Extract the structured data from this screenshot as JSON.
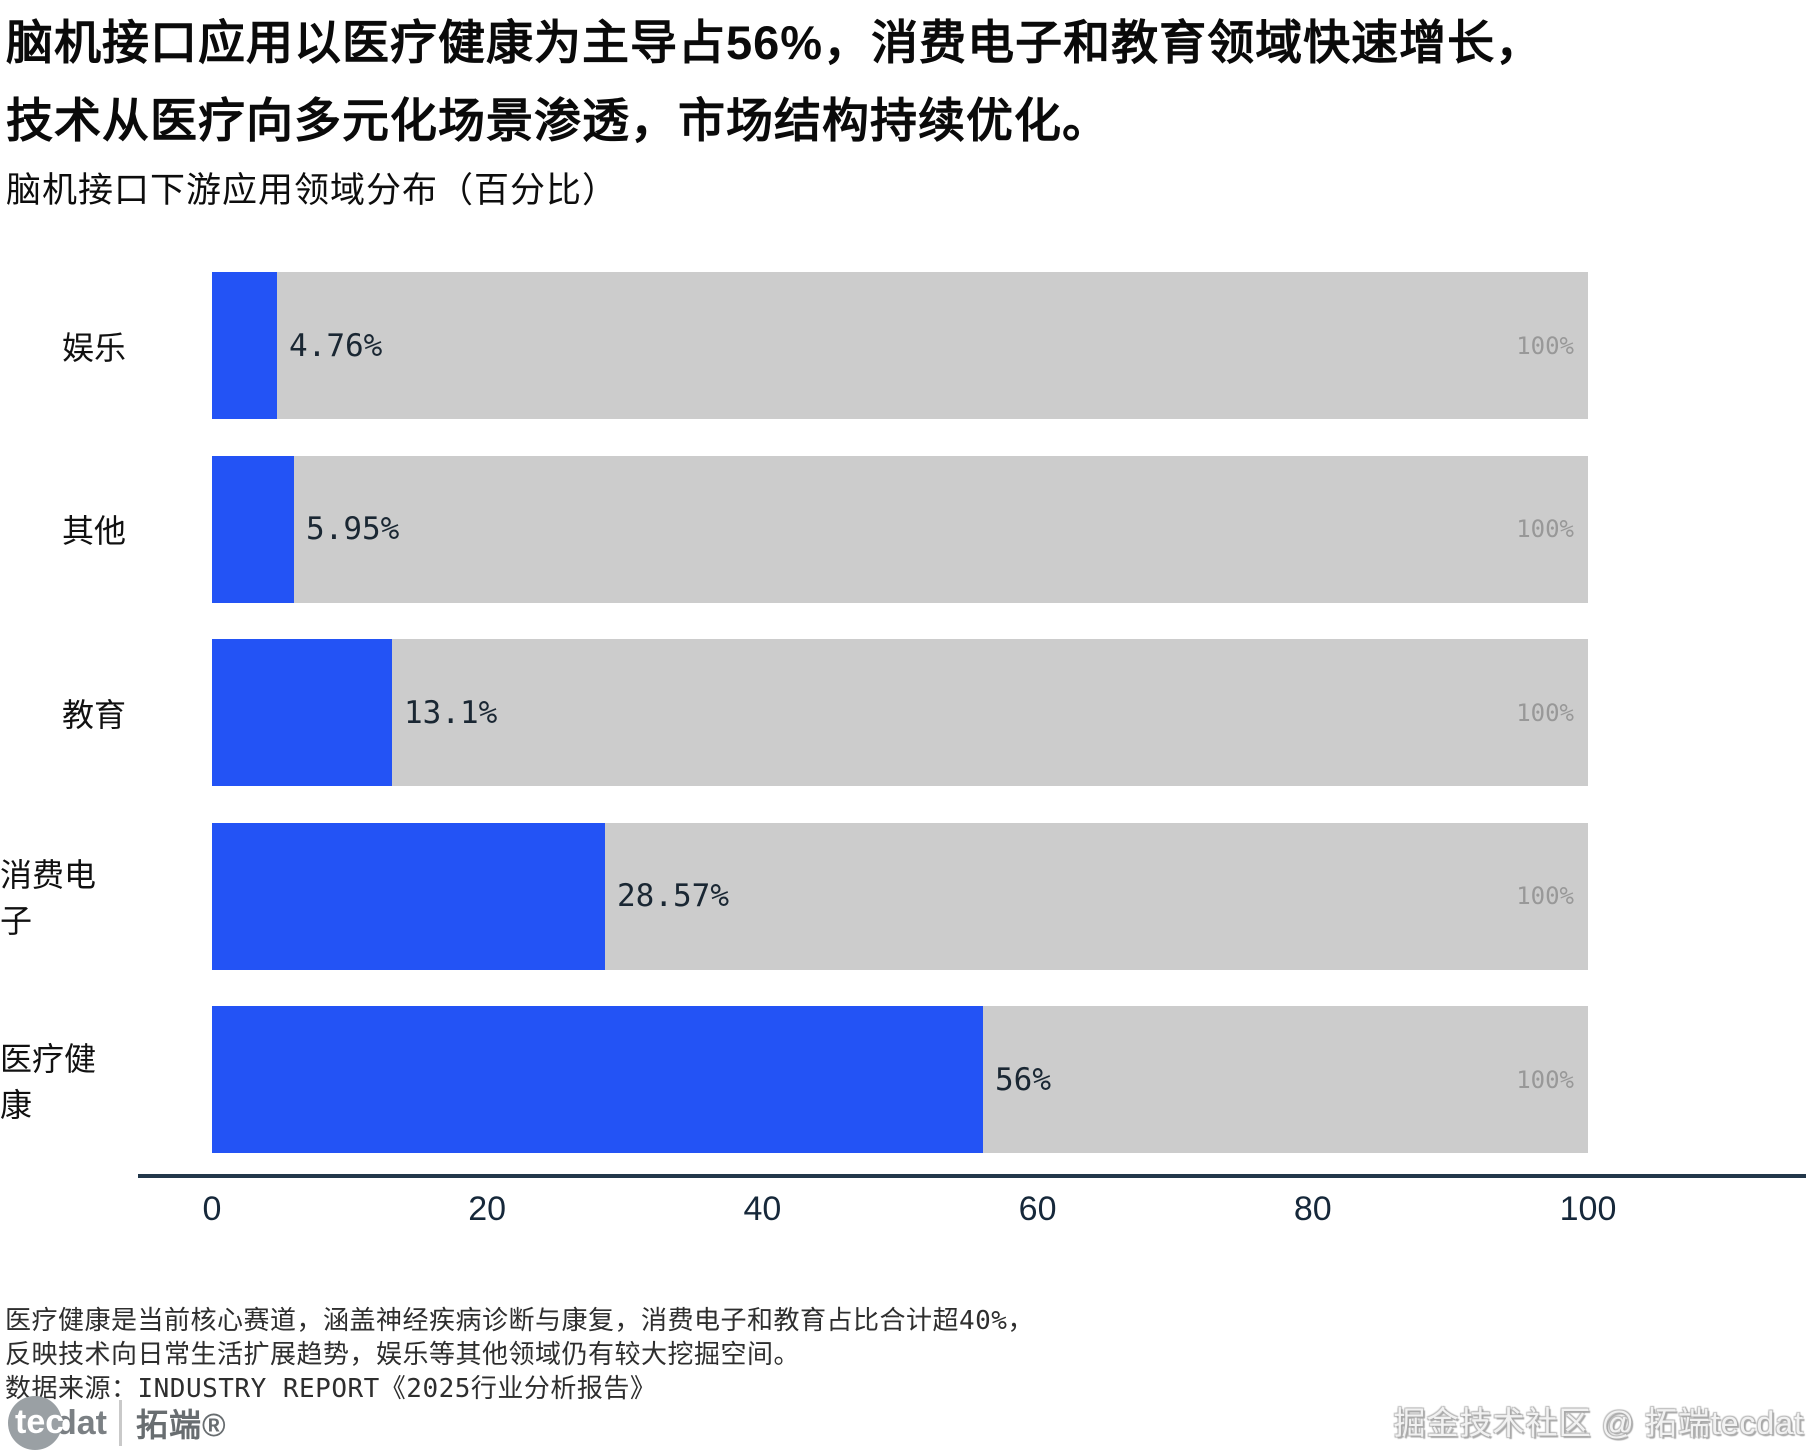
{
  "title": {
    "line1": "脑机接口应用以医疗健康为主导占56%，消费电子和教育领域快速增长，",
    "line2": "技术从医疗向多元化场景渗透，市场结构持续优化。"
  },
  "subtitle": "脑机接口下游应用领域分布（百分比）",
  "chart_data": {
    "type": "bar",
    "orientation": "horizontal",
    "title": "脑机接口下游应用领域分布（百分比）",
    "categories": [
      "娱乐",
      "其他",
      "教育",
      "消费电子",
      "医疗健康"
    ],
    "values": [
      4.76,
      5.95,
      13.1,
      28.57,
      56
    ],
    "value_labels": [
      "4.76%",
      "5.95%",
      "13.1%",
      "28.57%",
      "56%"
    ],
    "track_label": "100%",
    "track_max": 100,
    "x_ticks": [
      0,
      20,
      40,
      60,
      80,
      100
    ],
    "xlim": [
      0,
      100
    ],
    "grid": false,
    "legend": false,
    "bar_color": "#2353f5",
    "track_color": "#cccccc",
    "axis_color": "#22374a"
  },
  "footnotes": {
    "line1": "医疗健康是当前核心赛道，涵盖神经疾病诊断与康复，消费电子和教育占比合计超40%，",
    "line2": "反映技术向日常生活扩展趋势，娱乐等其他领域仍有较大挖掘空间。",
    "source": "数据来源：INDUSTRY REPORT《2025行业分析报告》"
  },
  "logo": {
    "circle_text": "tec",
    "suffix": "dat",
    "brand": "拓端®"
  },
  "watermark": "掘金技术社区 @ 拓端tecdat"
}
